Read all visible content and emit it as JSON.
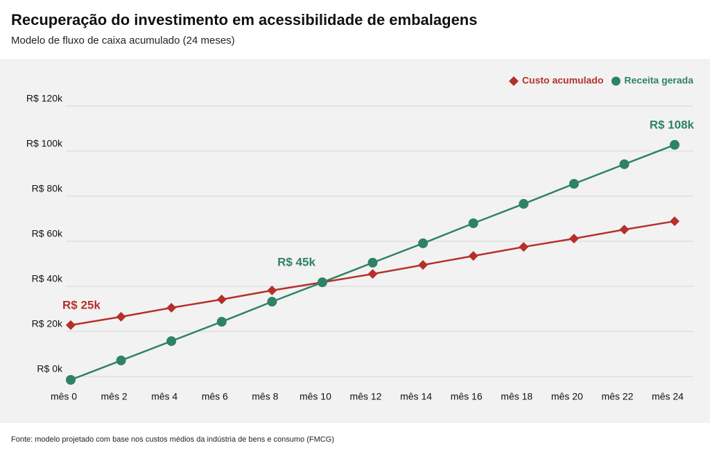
{
  "chart_data": {
    "type": "line",
    "title": "Recuperação do investimento em acessibilidade de embalagens",
    "subtitle": "Modelo de fluxo de caixa acumulado (24 meses)",
    "source": "Fonte: modelo projetado com base nos custos médios da indústria de bens e consumo (FMCG)",
    "categories": [
      "mês 0",
      "mês 2",
      "mês 4",
      "mês 6",
      "mês 8",
      "mês 10",
      "mês 12",
      "mês 14",
      "mês 16",
      "mês 18",
      "mês 20",
      "mês 22",
      "mês 24"
    ],
    "series": [
      {
        "name": "Custo acumulado",
        "color": "#b5302a",
        "marker": "diamond",
        "values": [
          22.8,
          26.5,
          30.5,
          34.2,
          38.2,
          41.8,
          45.5,
          49.5,
          53.5,
          57.5,
          61.2,
          65.2,
          68.9
        ]
      },
      {
        "name": "Receita gerada",
        "color": "#2e8265",
        "marker": "circle",
        "values": [
          -1.5,
          7.1,
          15.7,
          24.3,
          33.2,
          41.8,
          50.5,
          59.1,
          68.0,
          76.6,
          85.5,
          94.2,
          102.8
        ]
      }
    ],
    "annotations": [
      "R$ 25k",
      "R$ 45k",
      "R$ 108k"
    ],
    "ylim": [
      -5,
      125
    ],
    "yticks": [
      {
        "value": 0,
        "label": "R$ 0k"
      },
      {
        "value": 20,
        "label": "R$ 20k"
      },
      {
        "value": 40,
        "label": "R$ 40k"
      },
      {
        "value": 60,
        "label": "R$ 60k"
      },
      {
        "value": 80,
        "label": "R$ 80k"
      },
      {
        "value": 100,
        "label": "R$ 100k"
      },
      {
        "value": 120,
        "label": "R$ 120k"
      }
    ],
    "grid": true,
    "legend": "top-right"
  }
}
